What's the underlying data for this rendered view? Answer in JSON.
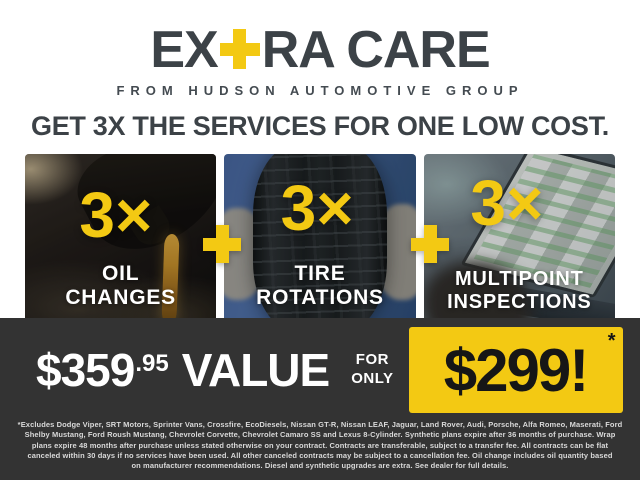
{
  "brand": {
    "name_prefix": "EX",
    "name_suffix": "RA CARE",
    "logo_plus_icon": "+",
    "tagline": "FROM HUDSON AUTOMOTIVE GROUP"
  },
  "headline": "GET 3X THE SERVICES FOR ONE LOW COST.",
  "panels": [
    {
      "multiplier": "3×",
      "label_line1": "OIL",
      "label_line2": "CHANGES",
      "photo": "oil-pour-photo"
    },
    {
      "multiplier": "3×",
      "label_line1": "TIRE",
      "label_line2": "ROTATIONS",
      "photo": "tire-hold-photo"
    },
    {
      "multiplier": "3×",
      "label_line1": "MULTIPOINT",
      "label_line2": "INSPECTIONS",
      "photo": "laptop-checklist-photo"
    }
  ],
  "separator_icon": "plus-icon",
  "offer": {
    "value_dollars": "$359",
    "value_cents": ".95",
    "value_word": "VALUE",
    "for_word": "FOR",
    "only_word": "ONLY",
    "sale_price": "$299!",
    "footnote_mark": "*"
  },
  "fine_print_lines": [
    "*Excludes Dodge Viper, SRT Motors, Sprinter Vans, Crossfire, EcoDiesels, Nissan GT-R, Nissan LEAF, Jaguar, Land Rover, Audi, Porsche, Alfa Romeo, Maserati, Ford",
    "Shelby Mustang, Ford Roush Mustang, Chevrolet Corvette, Chevrolet Camaro SS and Lexus 8-Cylinder. Synthetic plans expire after 36 months of purchase. Wrap",
    "plans expire 48 months after purchase unless stated otherwise on your contract. Contracts are transferable, subject to a transfer fee. All contracts can be flat",
    "canceled within 30 days if no services have been used. All other canceled contracts may be subject to a cancellation fee. Oil change includes oil quantity based",
    "on manufacturer recommendations. Diesel and synthetic upgrades are extra. See dealer for full details."
  ],
  "colors": {
    "brand_yellow": "#F3C913",
    "bar_charcoal": "#333333",
    "headline_gray": "#3C4247"
  }
}
